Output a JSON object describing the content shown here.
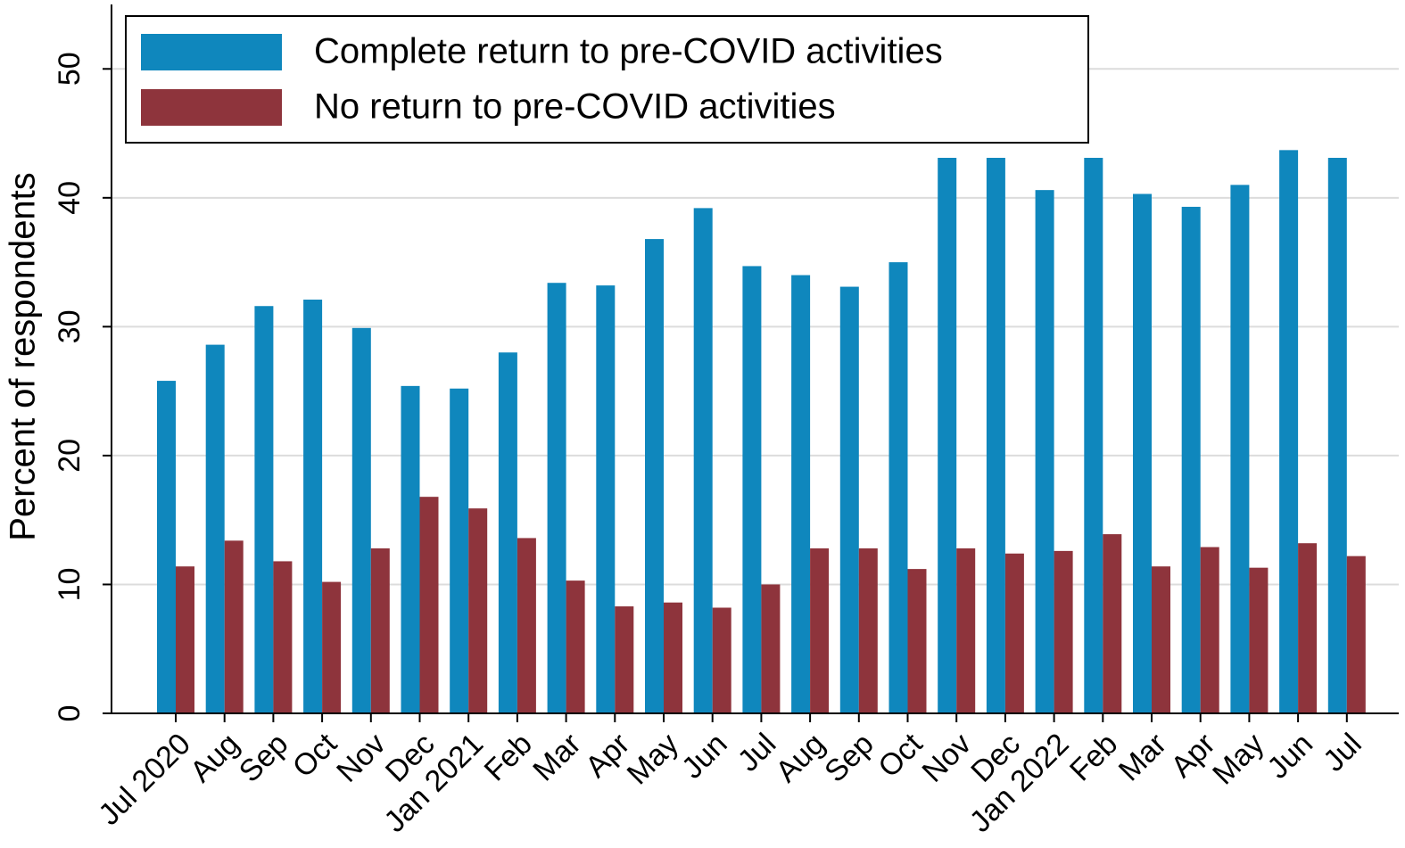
{
  "chart_data": {
    "type": "bar",
    "y_label": "Percent of respondents",
    "categories": [
      "Jul 2020",
      "Aug",
      "Sep",
      "Oct",
      "Nov",
      "Dec",
      "Jan 2021",
      "Feb",
      "Mar",
      "Apr",
      "May",
      "Jun",
      "Jul",
      "Aug",
      "Sep",
      "Oct",
      "Nov",
      "Dec",
      "Jan 2022",
      "Feb",
      "Mar",
      "Apr",
      "May",
      "Jun",
      "Jul"
    ],
    "series": [
      {
        "name": "Complete return to pre-COVID activities",
        "color": "#0f87bd",
        "values": [
          25.8,
          28.6,
          31.6,
          32.1,
          29.9,
          25.4,
          25.2,
          28.0,
          33.4,
          33.2,
          36.8,
          39.2,
          34.7,
          34.0,
          33.1,
          35.0,
          43.1,
          43.1,
          40.6,
          43.1,
          40.3,
          39.3,
          41.0,
          43.7,
          43.1
        ]
      },
      {
        "name": "No return to pre-COVID activities",
        "color": "#8e343c",
        "values": [
          11.4,
          13.4,
          11.8,
          10.2,
          12.8,
          16.8,
          15.9,
          13.6,
          10.3,
          8.3,
          8.6,
          8.2,
          10.0,
          12.8,
          12.8,
          11.2,
          12.8,
          12.4,
          12.6,
          13.9,
          11.4,
          12.9,
          11.3,
          13.2,
          12.2
        ]
      }
    ],
    "ylim": [
      0,
      55
    ],
    "yticks": [
      0,
      10,
      20,
      30,
      40,
      50
    ],
    "grid": true,
    "legend": "top-left"
  }
}
